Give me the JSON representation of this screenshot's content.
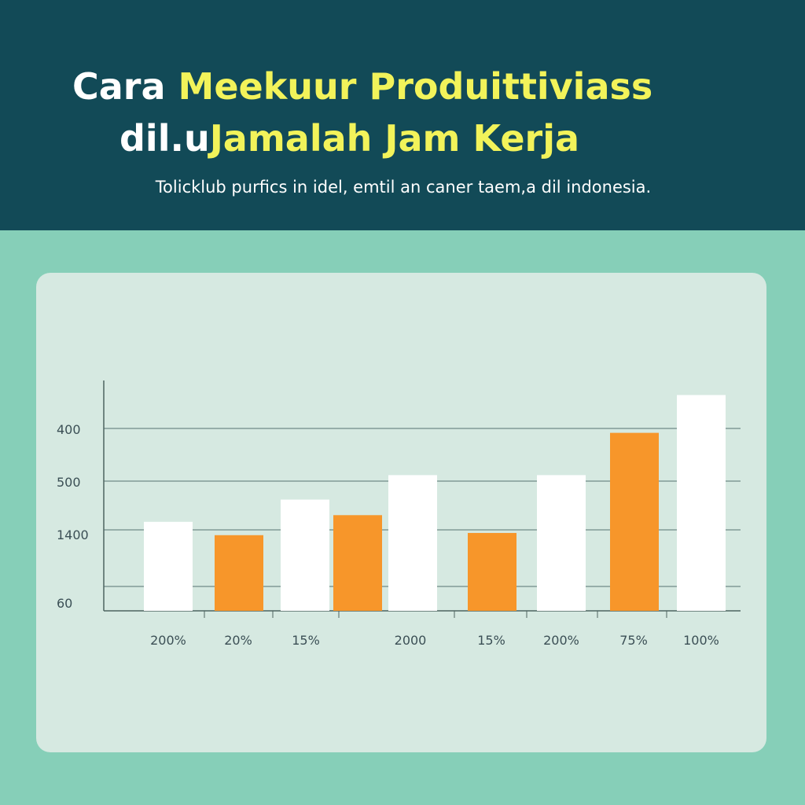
{
  "header": {
    "title_line1_part1": "Cara ",
    "title_line1_part2": "Meekuur Produittiviass",
    "title_line2_part1": "dil.u",
    "title_line2_part2": "Jamalah Jam Kerja",
    "subtitle": "Tolicklub purfics in idel, emtil an caner taem,a dil indonesia."
  },
  "colors": {
    "header_bg": "#124a57",
    "page_bg": "#86cfb8",
    "card_bg": "#d6e9e1",
    "title_white": "#ffffff",
    "title_yellow": "#f2f35a",
    "bar_white": "#ffffff",
    "bar_orange": "#f7962a",
    "grid": "#6f8c88"
  },
  "chart_data": {
    "type": "bar",
    "title": "",
    "xlabel": "",
    "ylabel": "",
    "y_tick_labels": [
      "400",
      "500",
      "1400",
      "60"
    ],
    "categories": [
      "200%",
      "20%",
      "15%",
      "2000",
      "15%",
      "200%",
      "75%",
      "100%"
    ],
    "bars": [
      {
        "group": 0,
        "color": "white",
        "value": 0.4
      },
      {
        "group": 1,
        "color": "orange",
        "value": 0.34
      },
      {
        "group": 2,
        "color": "white",
        "value": 0.5
      },
      {
        "group": 2,
        "color": "orange",
        "value": 0.43
      },
      {
        "group": 3,
        "color": "white",
        "value": 0.61
      },
      {
        "group": 4,
        "color": "orange",
        "value": 0.35
      },
      {
        "group": 5,
        "color": "white",
        "value": 0.61
      },
      {
        "group": 6,
        "color": "orange",
        "value": 0.8
      },
      {
        "group": 7,
        "color": "white",
        "value": 0.97
      }
    ],
    "ylim": [
      0,
      1
    ],
    "grid": true,
    "legend": "none"
  }
}
